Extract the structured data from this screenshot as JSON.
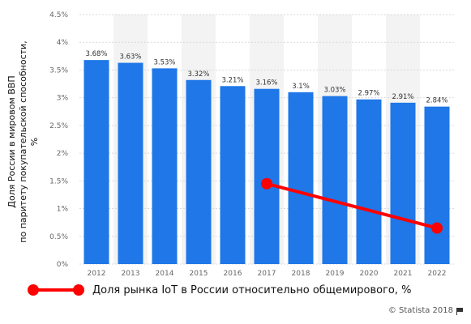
{
  "chart_data": {
    "type": "bar",
    "categories": [
      "2012",
      "2013",
      "2014",
      "2015",
      "2016",
      "2017",
      "2018",
      "2019",
      "2020",
      "2021",
      "2022"
    ],
    "series": [
      {
        "name": "",
        "values": [
          3.68,
          3.63,
          3.53,
          3.32,
          3.21,
          3.16,
          3.1,
          3.03,
          2.97,
          2.91,
          2.84
        ],
        "value_labels": [
          "3.68%",
          "3.63%",
          "3.53%",
          "3.32%",
          "3.21%",
          "3.16%",
          "3.1%",
          "3.03%",
          "2.97%",
          "2.91%",
          "2.84%"
        ],
        "color": "#1f77e8"
      },
      {
        "name": "Доля рынка IoT в России относительно общемирового, %",
        "type": "line",
        "x": [
          "2017",
          "2022"
        ],
        "values": [
          1.45,
          0.65
        ],
        "color": "#ff0000"
      }
    ],
    "yticks": [
      "0%",
      "0.5%",
      "1%",
      "1.5%",
      "2%",
      "2.5%",
      "3%",
      "3.5%",
      "4%",
      "4.5%"
    ],
    "ytick_values": [
      0,
      0.5,
      1,
      1.5,
      2,
      2.5,
      3,
      3.5,
      4,
      4.5
    ],
    "ylim": [
      0,
      4.5
    ],
    "ylabel_lines": [
      "Доля России в мировом ВВП",
      "по паритету покупательской способности,",
      "%"
    ],
    "xlabel": "",
    "title": "",
    "legend_position": "bottom-left",
    "grid": true
  },
  "credit": "© Statista 2018"
}
